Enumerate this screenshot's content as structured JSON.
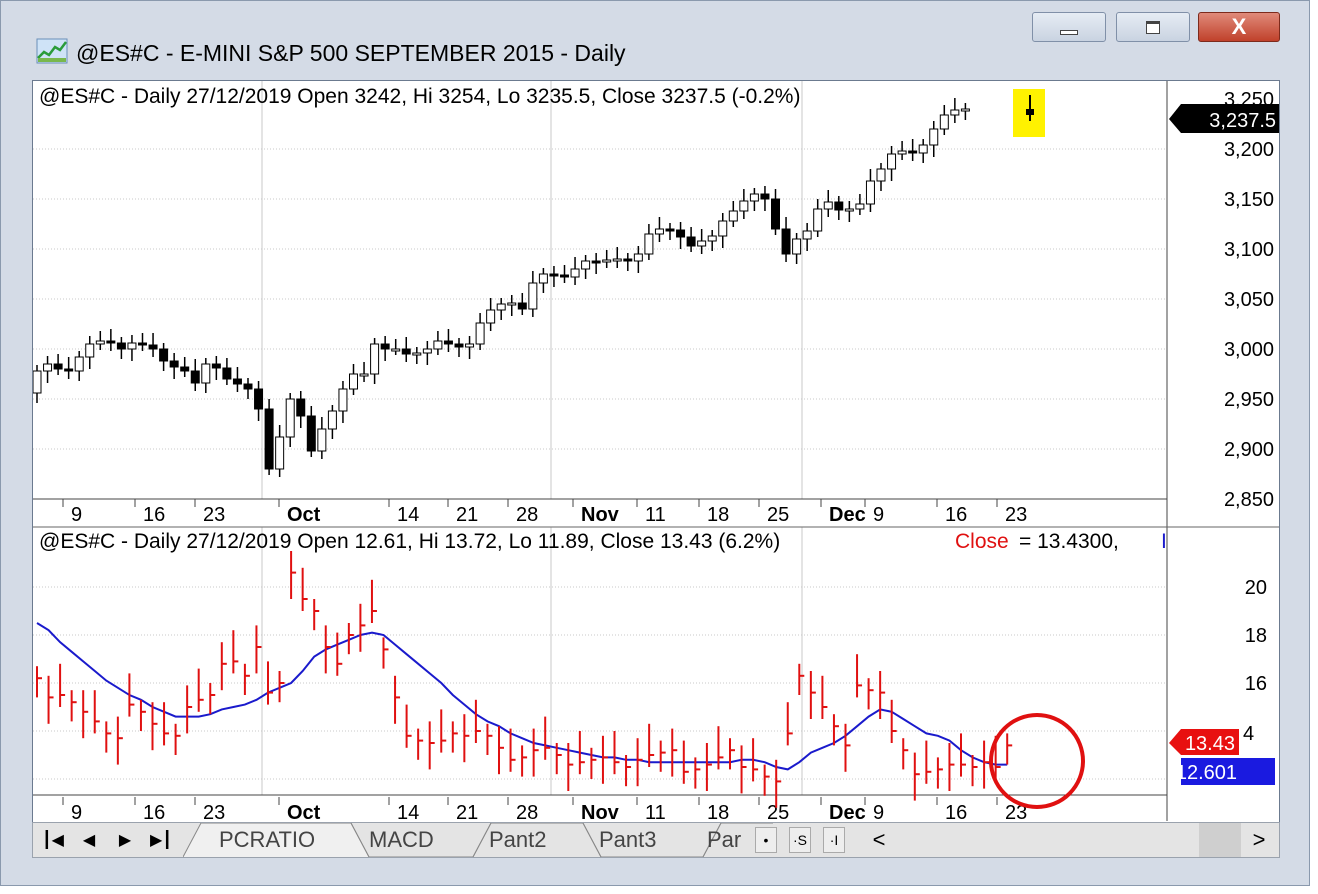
{
  "window": {
    "title": "@ES#C - E-MINI S&P 500 SEPTEMBER 2015 - Daily",
    "icons": [
      "chart-app-icon",
      "minimize-icon",
      "maximize-icon",
      "close-icon"
    ],
    "close_glyph": "X"
  },
  "price_pane": {
    "header": "@ES#C - Daily 27/12/2019 Open 3242, Hi 3254, Lo 3235.5, Close 3237.5 (-0.2%)",
    "last_price_label": "3,237.5",
    "y_ticks": [
      "3,250",
      "3,200",
      "3,150",
      "3,100",
      "3,050",
      "3,000",
      "2,950",
      "2,900",
      "2,850"
    ]
  },
  "indicator_pane": {
    "header_main": "@ES#C - Daily 27/12/2019 Open 12.61, Hi 13.72, Lo 11.89, Close 13.43 (6.2%)",
    "header_close": "Close",
    "header_value": "= 13.4300,",
    "header_tail": "I",
    "close_label": "13.43",
    "ma_label": "12.601",
    "y_ticks": [
      "20",
      "18",
      "16",
      "14"
    ],
    "tick_suffix": "4"
  },
  "x_axis": {
    "labels": [
      "9",
      "16",
      "23",
      "Oct",
      "14",
      "21",
      "28",
      "Nov",
      "11",
      "18",
      "25",
      "Dec",
      "9",
      "16",
      "23"
    ]
  },
  "colors": {
    "up_candle": "#ffffff",
    "down_candle": "#000000",
    "volatility_bars": "#e01010",
    "moving_average": "#1a1acc",
    "highlight": "#fff200",
    "circle": "#e01010",
    "close_tag": "#e81010",
    "ma_tag": "#1a1ae0"
  },
  "tabbar": {
    "nav": [
      "first-icon",
      "prev-icon",
      "next-icon",
      "last-icon"
    ],
    "tabs": [
      "PCRATIO",
      "MACD",
      "Pant2",
      "Pant3",
      "Par"
    ],
    "buttons": [
      "•",
      "·S",
      "·I"
    ],
    "scroll_left": "<",
    "scroll_right": ">"
  },
  "chart_data": [
    {
      "type": "candlestick",
      "title": "@ES#C - Daily 27/12/2019 Open 3242, Hi 3254, Lo 3235.5, Close 3237.5 (-0.2%)",
      "ylim": [
        2840,
        3260
      ],
      "x_labels": [
        "9",
        "16",
        "23",
        "Oct",
        "14",
        "21",
        "28",
        "Nov",
        "11",
        "18",
        "25",
        "Dec",
        "9",
        "16",
        "23"
      ],
      "close": [
        2978,
        2985,
        2980,
        2978,
        2992,
        3005,
        3008,
        3006,
        3000,
        3006,
        3004,
        3000,
        2988,
        2982,
        2978,
        2966,
        2985,
        2981,
        2970,
        2965,
        2960,
        2940,
        2880,
        2912,
        2950,
        2933,
        2898,
        2920,
        2938,
        2960,
        2975,
        2975,
        3005,
        3000,
        3000,
        2995,
        2996,
        3000,
        3008,
        3005,
        3002,
        3005,
        3026,
        3039,
        3045,
        3046,
        3040,
        3066,
        3075,
        3074,
        3072,
        3080,
        3088,
        3087,
        3089,
        3090,
        3088,
        3095,
        3115,
        3120,
        3119,
        3112,
        3103,
        3108,
        3113,
        3128,
        3138,
        3148,
        3155,
        3150,
        3120,
        3095,
        3110,
        3118,
        3140,
        3147,
        3139,
        3140,
        3145,
        3168,
        3180,
        3195,
        3198,
        3196,
        3204,
        3220,
        3234,
        3239,
        3240,
        3237.5
      ]
    },
    {
      "type": "bar",
      "title": "@ES#C - Daily 27/12/2019 Open 12.61, Hi 13.72, Lo 11.89, Close 13.43 (6.2%) Close = 13.4300",
      "ylim": [
        11.3,
        21.5
      ],
      "series": [
        {
          "name": "Close",
          "values": [
            16.2,
            15.4,
            15.5,
            15.2,
            14.8,
            14.4,
            13.9,
            13.7,
            15.1,
            14.8,
            14.3,
            13.9,
            13.8,
            15.0,
            15.3,
            15.5,
            16.8,
            16.9,
            16.3,
            17.5,
            15.6,
            16.0,
            20.6,
            19.5,
            19.0,
            17.5,
            16.8,
            18.0,
            18.4,
            19.0,
            17.4,
            15.4,
            13.8,
            13.6,
            13.5,
            13.6,
            13.9,
            13.8,
            14.0,
            13.8,
            13.3,
            12.8,
            12.9,
            13.2,
            13.3,
            13.0,
            12.6,
            12.7,
            12.8,
            12.9,
            12.7,
            12.5,
            12.8,
            13.0,
            13.1,
            13.2,
            12.3,
            12.4,
            12.6,
            12.9,
            13.2,
            12.5,
            12.4,
            12.1,
            11.9,
            13.9,
            16.3,
            15.6,
            15.0,
            14.2,
            13.4,
            15.9,
            15.7,
            15.6,
            14.0,
            13.2,
            12.2,
            12.3,
            12.4,
            12.6,
            12.6,
            12.5,
            12.7,
            12.5,
            13.4
          ]
        },
        {
          "name": "Moving average",
          "values": [
            18.5,
            18.2,
            17.7,
            17.3,
            16.9,
            16.5,
            16.1,
            15.8,
            15.5,
            15.3,
            15.0,
            14.8,
            14.6,
            14.6,
            14.6,
            14.7,
            14.9,
            15.0,
            15.1,
            15.3,
            15.6,
            15.8,
            16.0,
            16.5,
            17.1,
            17.4,
            17.6,
            17.8,
            18.0,
            18.1,
            18.0,
            17.6,
            17.2,
            16.8,
            16.4,
            16.0,
            15.5,
            15.1,
            14.7,
            14.4,
            14.2,
            13.9,
            13.7,
            13.5,
            13.4,
            13.3,
            13.2,
            13.1,
            13.0,
            12.9,
            12.9,
            12.8,
            12.8,
            12.7,
            12.7,
            12.7,
            12.7,
            12.7,
            12.7,
            12.7,
            12.7,
            12.8,
            12.8,
            12.7,
            12.5,
            12.4,
            12.7,
            13.1,
            13.3,
            13.5,
            13.8,
            14.2,
            14.6,
            14.9,
            14.8,
            14.5,
            14.2,
            13.9,
            13.8,
            13.6,
            13.2,
            12.9,
            12.7,
            12.6,
            12.6
          ]
        }
      ]
    }
  ]
}
